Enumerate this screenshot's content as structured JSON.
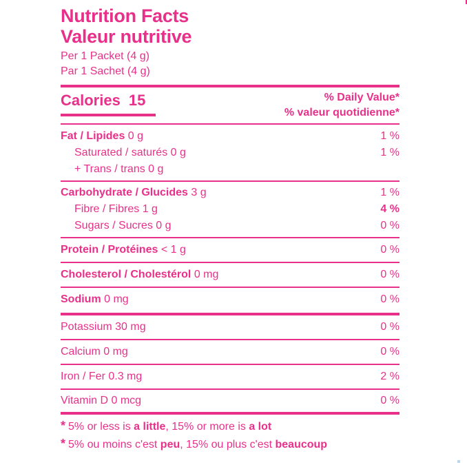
{
  "header": {
    "title_en": "Nutrition Facts",
    "title_fr": "Valeur nutritive",
    "serving_en": "Per 1 Packet (4 g)",
    "serving_fr": "Par 1 Sachet (4 g)"
  },
  "calories": {
    "label": "Calories",
    "value": "15"
  },
  "daily_value": {
    "en": "% Daily Value*",
    "fr": "% valeur quotidienne*"
  },
  "nutrients": {
    "fat": {
      "label": "Fat / Lipides",
      "amount": "0 g",
      "pct": "1 %"
    },
    "saturated": {
      "label": "Saturated / saturés 0 g",
      "pct": "1 %"
    },
    "trans": {
      "label": "+ Trans / trans 0 g"
    },
    "carb": {
      "label": "Carbohydrate / Glucides",
      "amount": "3 g",
      "pct": "1 %"
    },
    "fibre": {
      "label": "Fibre / Fibres 1 g",
      "pct": "4 %"
    },
    "sugars": {
      "label": "Sugars / Sucres 0 g",
      "pct": "0 %"
    },
    "protein": {
      "label": "Protein / Protéines",
      "amount": "< 1 g",
      "pct": "0 %"
    },
    "cholesterol": {
      "label": "Cholesterol / Cholestérol",
      "amount": "0 mg",
      "pct": "0 %"
    },
    "sodium": {
      "label": "Sodium",
      "amount": "0 mg",
      "pct": "0 %"
    },
    "potassium": {
      "label": "Potassium 30 mg",
      "pct": "0 %"
    },
    "calcium": {
      "label": "Calcium 0 mg",
      "pct": "0 %"
    },
    "iron": {
      "label": "Iron / Fer 0.3 mg",
      "pct": "2 %"
    },
    "vitamin_d": {
      "label": "Vitamin D 0 mcg",
      "pct": "0 %"
    }
  },
  "footnote": {
    "star": "*",
    "en_a": "5% or less is ",
    "en_b": "a little",
    "en_c": ", 15% or more is ",
    "en_d": "a lot",
    "fr_a": "5% ou moins c'est ",
    "fr_b": "peu",
    "fr_c": ", 15% ou plus c'est ",
    "fr_d": "beaucoup"
  },
  "colors": {
    "ink": "#e8308a"
  }
}
